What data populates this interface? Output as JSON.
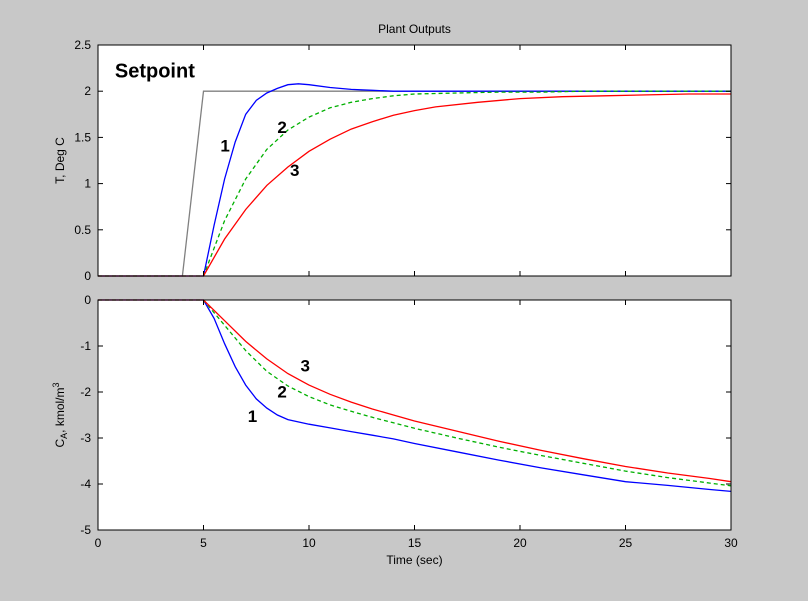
{
  "figure": {
    "background": "#c8c8c8",
    "axes_background": "#ffffff"
  },
  "chart_data": [
    {
      "type": "line",
      "title": "Plant Outputs",
      "xlabel": "",
      "ylabel": "T, Deg C",
      "xlim": [
        0,
        30
      ],
      "ylim": [
        0,
        2.5
      ],
      "xticks": [
        0,
        5,
        10,
        15,
        20,
        25,
        30
      ],
      "yticks": [
        0,
        0.5,
        1,
        1.5,
        2,
        2.5
      ],
      "ytick_labels": [
        "0",
        "0.5",
        "1",
        "1.5",
        "2",
        "2.5"
      ],
      "show_xtick_labels": false,
      "grid": false,
      "series": [
        {
          "color": "#808080",
          "style": "solid",
          "x": [
            0,
            4,
            5,
            30
          ],
          "y": [
            0,
            0,
            2,
            2
          ]
        },
        {
          "color": "#0000ff",
          "style": "solid",
          "x": [
            0,
            5,
            5.5,
            6,
            6.5,
            7,
            7.5,
            8,
            8.5,
            9,
            9.5,
            10,
            11,
            12,
            13,
            14,
            30
          ],
          "y": [
            0,
            0,
            0.55,
            1.05,
            1.45,
            1.75,
            1.9,
            1.98,
            2.03,
            2.07,
            2.08,
            2.07,
            2.04,
            2.02,
            2.01,
            2.0,
            2.0
          ]
        },
        {
          "color": "#00b000",
          "style": "dashed",
          "x": [
            0,
            5,
            6,
            7,
            8,
            9,
            10,
            11,
            12,
            13,
            14,
            15,
            17,
            19,
            21,
            23,
            25,
            27,
            30
          ],
          "y": [
            0,
            0,
            0.6,
            1.05,
            1.37,
            1.58,
            1.72,
            1.82,
            1.88,
            1.92,
            1.95,
            1.97,
            1.98,
            1.99,
            1.99,
            2.0,
            2.0,
            2.0,
            2.0
          ]
        },
        {
          "color": "#ff0000",
          "style": "solid",
          "x": [
            0,
            5,
            6,
            7,
            8,
            9,
            10,
            11,
            12,
            13,
            14,
            15,
            16,
            18,
            20,
            22,
            24,
            26,
            28,
            30
          ],
          "y": [
            0,
            0,
            0.4,
            0.72,
            0.98,
            1.18,
            1.35,
            1.48,
            1.59,
            1.67,
            1.74,
            1.79,
            1.83,
            1.88,
            1.92,
            1.94,
            1.95,
            1.96,
            1.97,
            1.97
          ]
        }
      ],
      "annotations": [
        {
          "text": "Setpoint",
          "x": 0.8,
          "y": 2.15,
          "style": "big"
        },
        {
          "text": "1",
          "x": 5.8,
          "y": 1.35
        },
        {
          "text": "2",
          "x": 8.5,
          "y": 1.55
        },
        {
          "text": "3",
          "x": 9.1,
          "y": 1.08
        }
      ]
    },
    {
      "type": "line",
      "title": "",
      "xlabel": "Time (sec)",
      "ylabel": "C_A, kmol/m^3",
      "ylabel_parts": {
        "main": "C",
        "sub": "A",
        "rest": ", kmol/m",
        "sup": "3"
      },
      "xlim": [
        0,
        30
      ],
      "ylim": [
        -5,
        0
      ],
      "xticks": [
        0,
        5,
        10,
        15,
        20,
        25,
        30
      ],
      "xtick_labels": [
        "0",
        "5",
        "10",
        "15",
        "20",
        "25",
        "30"
      ],
      "yticks": [
        0,
        -1,
        -2,
        -3,
        -4,
        -5
      ],
      "ytick_labels": [
        "0",
        "-1",
        "-2",
        "-3",
        "-4",
        "-5"
      ],
      "show_xtick_labels": true,
      "grid": false,
      "series": [
        {
          "color": "#0000ff",
          "style": "solid",
          "x": [
            0,
            5,
            5.5,
            6,
            6.5,
            7,
            7.5,
            8,
            8.5,
            9,
            10,
            11,
            12,
            13,
            14,
            15,
            17,
            19,
            21,
            23,
            25,
            27,
            29,
            30
          ],
          "y": [
            0,
            0,
            -0.4,
            -0.95,
            -1.45,
            -1.85,
            -2.15,
            -2.35,
            -2.5,
            -2.6,
            -2.7,
            -2.78,
            -2.86,
            -2.94,
            -3.02,
            -3.12,
            -3.3,
            -3.48,
            -3.65,
            -3.8,
            -3.95,
            -4.03,
            -4.12,
            -4.16
          ]
        },
        {
          "color": "#00b000",
          "style": "dashed",
          "x": [
            0,
            5,
            6,
            7,
            8,
            9,
            10,
            11,
            12,
            13,
            14,
            15,
            17,
            19,
            21,
            23,
            25,
            27,
            29,
            30
          ],
          "y": [
            0,
            0,
            -0.55,
            -1.1,
            -1.55,
            -1.87,
            -2.1,
            -2.28,
            -2.42,
            -2.55,
            -2.67,
            -2.79,
            -3.0,
            -3.2,
            -3.38,
            -3.55,
            -3.72,
            -3.86,
            -3.98,
            -4.04
          ]
        },
        {
          "color": "#ff0000",
          "style": "solid",
          "x": [
            0,
            5,
            6,
            7,
            8,
            9,
            10,
            11,
            12,
            13,
            14,
            15,
            17,
            19,
            21,
            23,
            25,
            27,
            29,
            30
          ],
          "y": [
            0,
            0,
            -0.45,
            -0.9,
            -1.28,
            -1.6,
            -1.85,
            -2.05,
            -2.22,
            -2.37,
            -2.5,
            -2.63,
            -2.85,
            -3.07,
            -3.27,
            -3.45,
            -3.62,
            -3.76,
            -3.88,
            -3.95
          ]
        }
      ],
      "annotations": [
        {
          "text": "3",
          "x": 9.6,
          "y": -1.55
        },
        {
          "text": "2",
          "x": 8.5,
          "y": -2.12
        },
        {
          "text": "1",
          "x": 7.1,
          "y": -2.65
        }
      ]
    }
  ]
}
